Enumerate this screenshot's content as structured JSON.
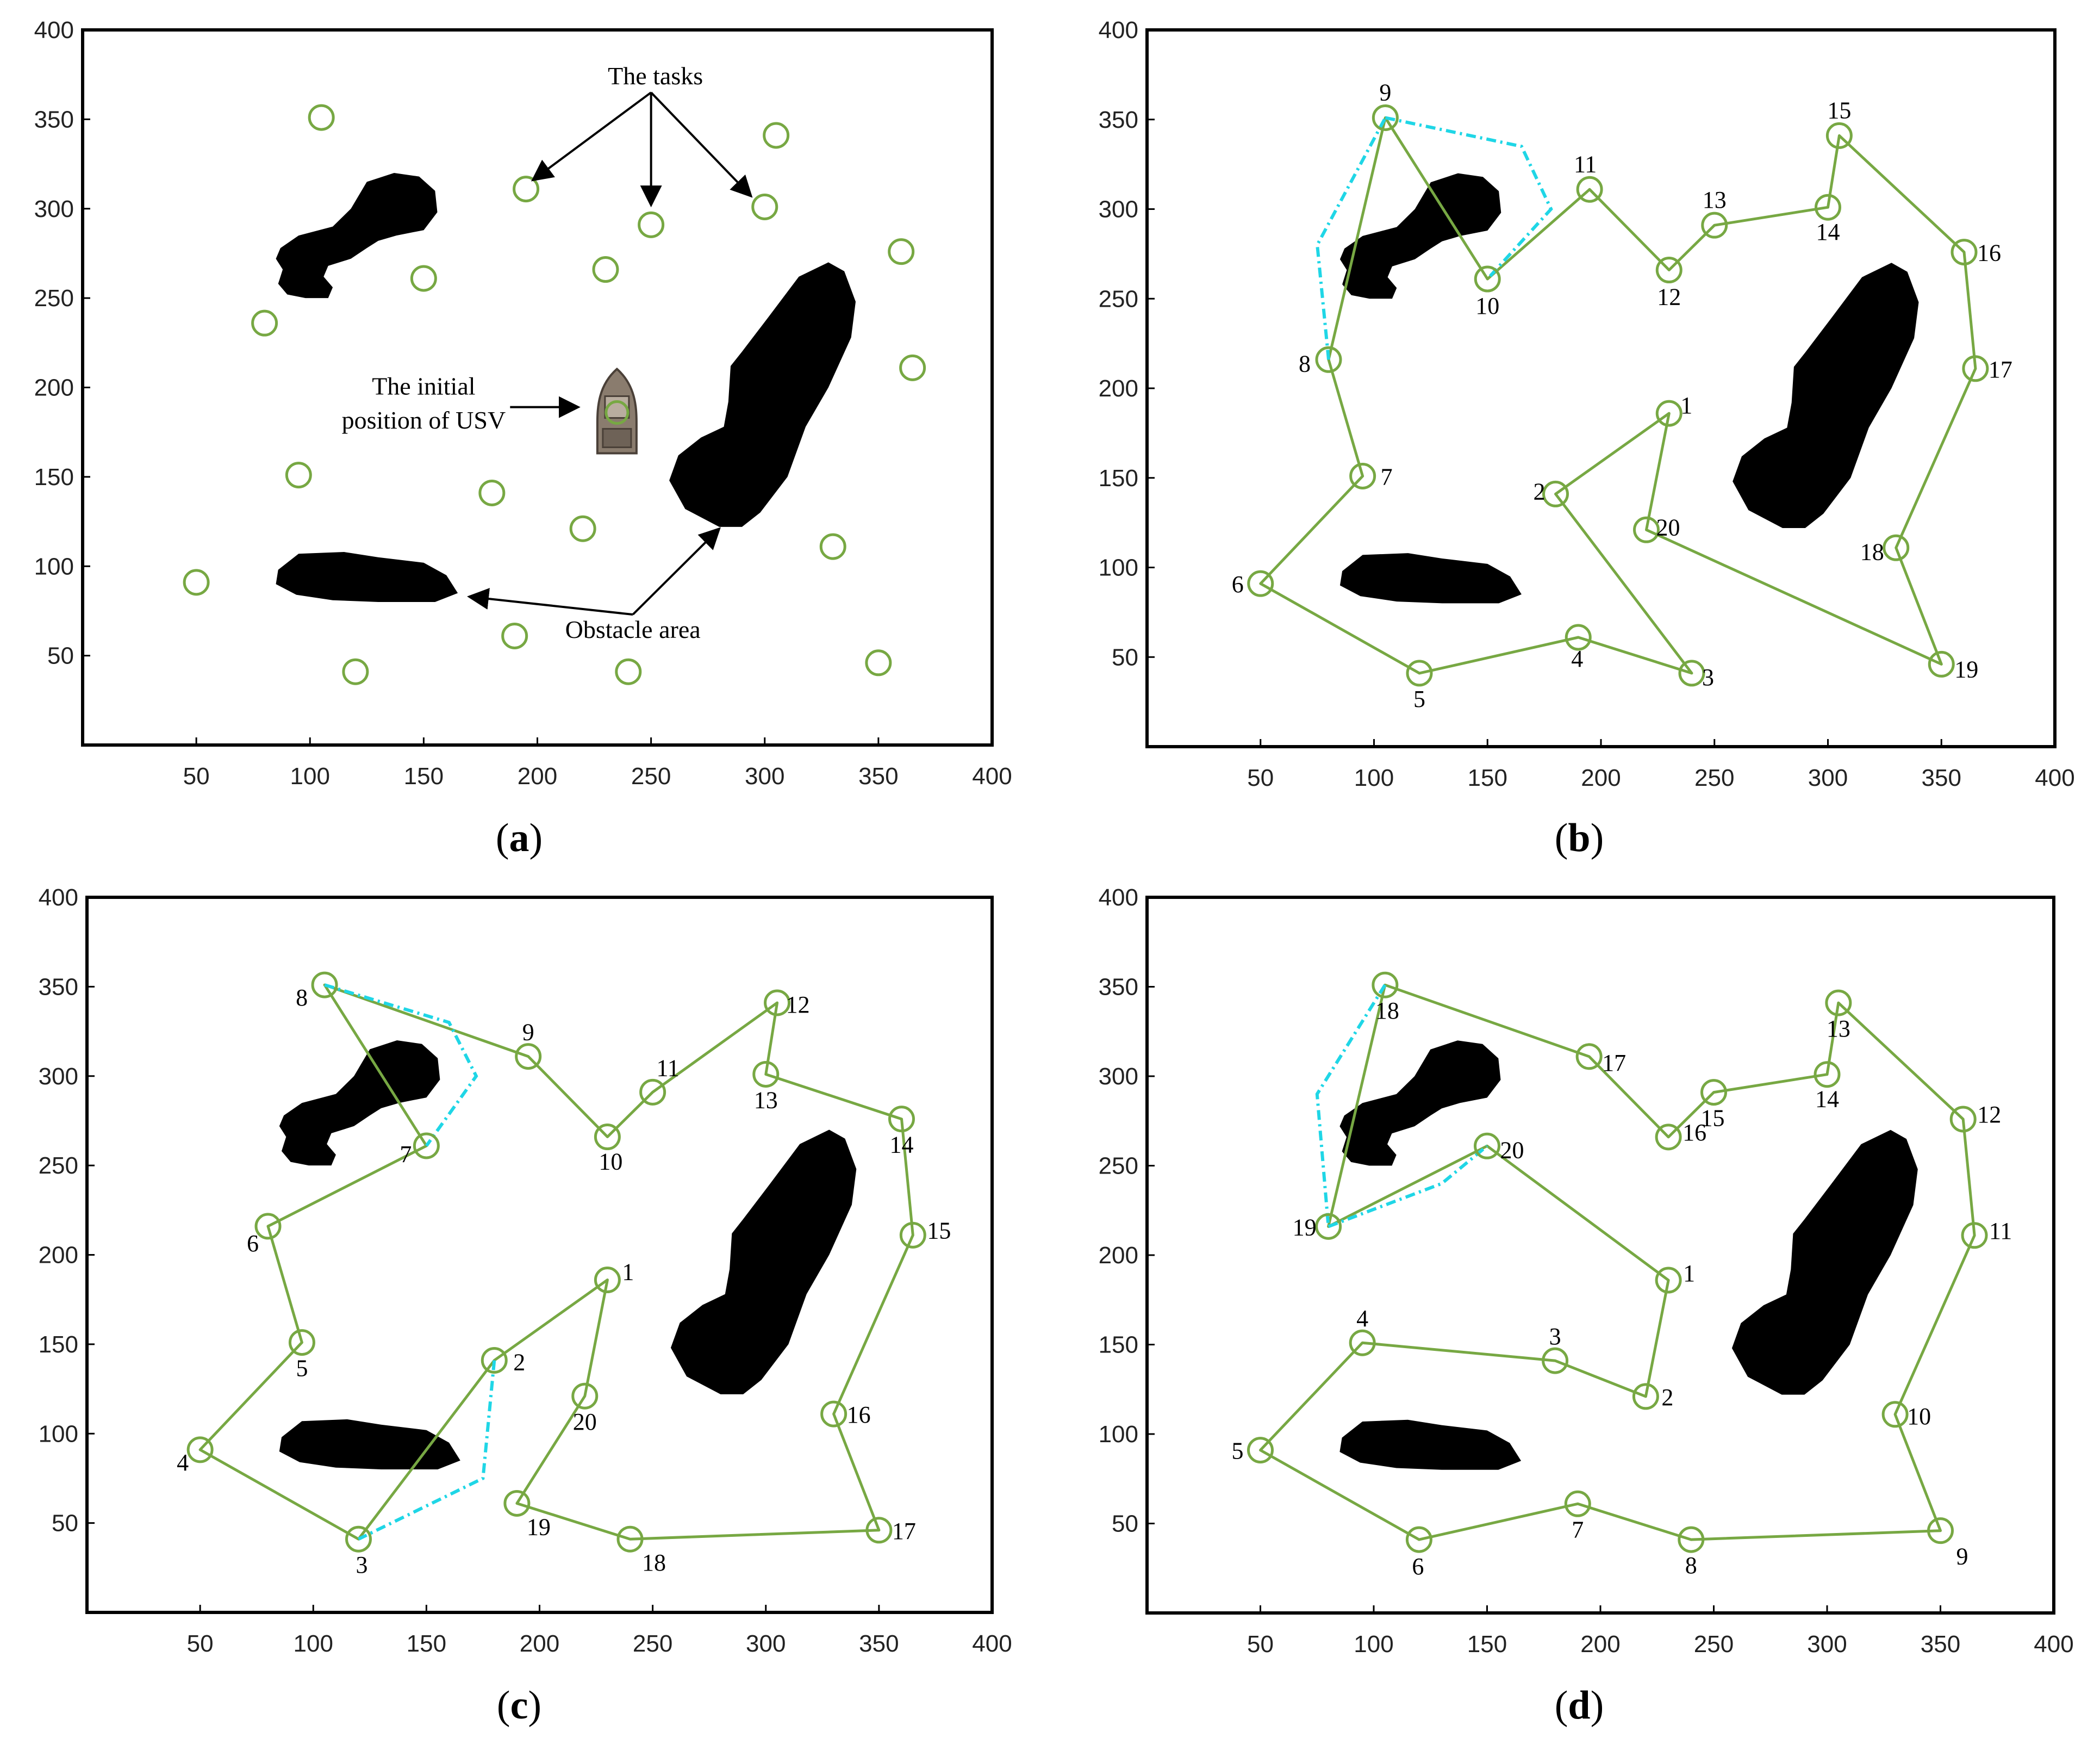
{
  "chart_data": [
    {
      "panel": "(a)",
      "type": "scatter",
      "xlim": [
        0,
        400
      ],
      "ylim": [
        0,
        400
      ],
      "xticks": [
        50,
        100,
        150,
        200,
        250,
        300,
        350,
        400
      ],
      "yticks": [
        50,
        100,
        150,
        200,
        250,
        300,
        350,
        400
      ],
      "tasks": [
        [
          105,
          351
        ],
        [
          195,
          311
        ],
        [
          305,
          341
        ],
        [
          250,
          291
        ],
        [
          300,
          301
        ],
        [
          150,
          261
        ],
        [
          230,
          266
        ],
        [
          360,
          276
        ],
        [
          80,
          236
        ],
        [
          365,
          211
        ],
        [
          95,
          151
        ],
        [
          180,
          141
        ],
        [
          220,
          121
        ],
        [
          330,
          111
        ],
        [
          50,
          91
        ],
        [
          190,
          61
        ],
        [
          120,
          41
        ],
        [
          240,
          41
        ],
        [
          350,
          46
        ]
      ],
      "usv": [
        235,
        186
      ],
      "annotations": {
        "tasks": "The tasks",
        "usv_line1": "The initial",
        "usv_line2": "position of USV",
        "obstacle": "Obstacle area"
      }
    },
    {
      "panel": "(b)",
      "type": "line",
      "xlim": [
        0,
        400
      ],
      "ylim": [
        0,
        400
      ],
      "xticks": [
        50,
        100,
        150,
        200,
        250,
        300,
        350,
        400
      ],
      "yticks": [
        50,
        100,
        150,
        200,
        250,
        300,
        350,
        400
      ],
      "route": [
        {
          "label": "1",
          "x": 230,
          "y": 186
        },
        {
          "label": "2",
          "x": 180,
          "y": 141
        },
        {
          "label": "3",
          "x": 240,
          "y": 41
        },
        {
          "label": "4",
          "x": 190,
          "y": 61
        },
        {
          "label": "5",
          "x": 120,
          "y": 41
        },
        {
          "label": "6",
          "x": 50,
          "y": 91
        },
        {
          "label": "7",
          "x": 95,
          "y": 151
        },
        {
          "label": "8",
          "x": 80,
          "y": 216
        },
        {
          "label": "9",
          "x": 105,
          "y": 351
        },
        {
          "label": "10",
          "x": 150,
          "y": 261
        },
        {
          "label": "11",
          "x": 195,
          "y": 311
        },
        {
          "label": "12",
          "x": 230,
          "y": 266
        },
        {
          "label": "13",
          "x": 250,
          "y": 291
        },
        {
          "label": "14",
          "x": 300,
          "y": 301
        },
        {
          "label": "15",
          "x": 305,
          "y": 341
        },
        {
          "label": "16",
          "x": 360,
          "y": 276
        },
        {
          "label": "17",
          "x": 365,
          "y": 211
        },
        {
          "label": "18",
          "x": 330,
          "y": 111
        },
        {
          "label": "19",
          "x": 350,
          "y": 46
        },
        {
          "label": "20",
          "x": 220,
          "y": 121
        }
      ],
      "detours": [
        [
          [
            80,
            216
          ],
          [
            75,
            280
          ],
          [
            105,
            351
          ]
        ],
        [
          [
            105,
            351
          ],
          [
            165,
            335
          ],
          [
            178,
            300
          ],
          [
            150,
            261
          ]
        ]
      ]
    },
    {
      "panel": "(c)",
      "type": "line",
      "xlim": [
        0,
        400
      ],
      "ylim": [
        0,
        400
      ],
      "xticks": [
        50,
        100,
        150,
        200,
        250,
        300,
        350,
        400
      ],
      "yticks": [
        50,
        100,
        150,
        200,
        250,
        300,
        350,
        400
      ],
      "route": [
        {
          "label": "1",
          "x": 230,
          "y": 186
        },
        {
          "label": "2",
          "x": 180,
          "y": 141
        },
        {
          "label": "3",
          "x": 120,
          "y": 41
        },
        {
          "label": "4",
          "x": 50,
          "y": 91
        },
        {
          "label": "5",
          "x": 95,
          "y": 151
        },
        {
          "label": "6",
          "x": 80,
          "y": 216
        },
        {
          "label": "7",
          "x": 150,
          "y": 261
        },
        {
          "label": "8",
          "x": 105,
          "y": 351
        },
        {
          "label": "9",
          "x": 195,
          "y": 311
        },
        {
          "label": "10",
          "x": 230,
          "y": 266
        },
        {
          "label": "11",
          "x": 250,
          "y": 291
        },
        {
          "label": "12",
          "x": 305,
          "y": 341
        },
        {
          "label": "13",
          "x": 300,
          "y": 301
        },
        {
          "label": "14",
          "x": 360,
          "y": 276
        },
        {
          "label": "15",
          "x": 365,
          "y": 211
        },
        {
          "label": "16",
          "x": 330,
          "y": 111
        },
        {
          "label": "17",
          "x": 350,
          "y": 46
        },
        {
          "label": "18",
          "x": 240,
          "y": 41
        },
        {
          "label": "19",
          "x": 190,
          "y": 61
        },
        {
          "label": "20",
          "x": 220,
          "y": 121
        }
      ],
      "detours": [
        [
          [
            105,
            351
          ],
          [
            160,
            330
          ],
          [
            172,
            300
          ],
          [
            150,
            261
          ]
        ],
        [
          [
            180,
            141
          ],
          [
            175,
            75
          ],
          [
            120,
            41
          ]
        ]
      ]
    },
    {
      "panel": "(d)",
      "type": "line",
      "xlim": [
        0,
        400
      ],
      "ylim": [
        0,
        400
      ],
      "xticks": [
        50,
        100,
        150,
        200,
        250,
        300,
        350,
        400
      ],
      "yticks": [
        50,
        100,
        150,
        200,
        250,
        300,
        350,
        400
      ],
      "route": [
        {
          "label": "1",
          "x": 230,
          "y": 186
        },
        {
          "label": "2",
          "x": 220,
          "y": 121
        },
        {
          "label": "3",
          "x": 180,
          "y": 141
        },
        {
          "label": "4",
          "x": 95,
          "y": 151
        },
        {
          "label": "5",
          "x": 50,
          "y": 91
        },
        {
          "label": "6",
          "x": 120,
          "y": 41
        },
        {
          "label": "7",
          "x": 190,
          "y": 61
        },
        {
          "label": "8",
          "x": 240,
          "y": 41
        },
        {
          "label": "9",
          "x": 350,
          "y": 46
        },
        {
          "label": "10",
          "x": 330,
          "y": 111
        },
        {
          "label": "11",
          "x": 365,
          "y": 211
        },
        {
          "label": "12",
          "x": 360,
          "y": 276
        },
        {
          "label": "13",
          "x": 305,
          "y": 341
        },
        {
          "label": "14",
          "x": 300,
          "y": 301
        },
        {
          "label": "15",
          "x": 250,
          "y": 291
        },
        {
          "label": "16",
          "x": 230,
          "y": 266
        },
        {
          "label": "17",
          "x": 195,
          "y": 311
        },
        {
          "label": "18",
          "x": 105,
          "y": 351
        },
        {
          "label": "19",
          "x": 80,
          "y": 216
        },
        {
          "label": "20",
          "x": 150,
          "y": 261
        }
      ],
      "detours": [
        [
          [
            105,
            351
          ],
          [
            75,
            290
          ],
          [
            80,
            216
          ]
        ],
        [
          [
            80,
            216
          ],
          [
            130,
            240
          ],
          [
            150,
            261
          ]
        ]
      ]
    }
  ]
}
